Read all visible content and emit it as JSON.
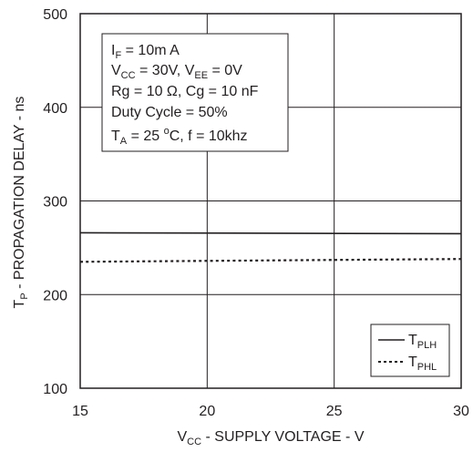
{
  "chart_data": {
    "type": "line",
    "xlabel": {
      "main": "V",
      "sub": "CC",
      "rest": " - SUPPLY VOLTAGE - V"
    },
    "ylabel": {
      "main": "T",
      "sub": "P",
      "rest": " - PROPAGATION DELAY - ns"
    },
    "xlim": [
      15,
      30
    ],
    "ylim": [
      100,
      500
    ],
    "x_ticks": [
      "15",
      "20",
      "25",
      "30"
    ],
    "y_ticks": [
      "100",
      "200",
      "300",
      "400",
      "500"
    ],
    "grid": true,
    "series": [
      {
        "name": "T",
        "name_sub": "PLH",
        "style": "solid",
        "x": [
          15,
          30
        ],
        "y": [
          266,
          265
        ]
      },
      {
        "name": "T",
        "name_sub": "PHL",
        "style": "dotted",
        "x": [
          15,
          30
        ],
        "y": [
          235,
          238
        ]
      }
    ],
    "legend_position": "bottom-right",
    "conditions": {
      "line1": {
        "a": "I",
        "a_sub": "F",
        "b": " = 10m A"
      },
      "line2": {
        "a": "V",
        "a_sub": "CC",
        "b": " = 30V, V",
        "b_sub": "EE",
        "c": " = 0V"
      },
      "line3": "Rg = 10 Ω, Cg = 10 nF",
      "line4": "Duty Cycle = 50%",
      "line5": {
        "a": "T",
        "a_sub": "A",
        "b": " = 25 ",
        "sup": "o",
        "c": "C, f = 10khz"
      }
    }
  }
}
